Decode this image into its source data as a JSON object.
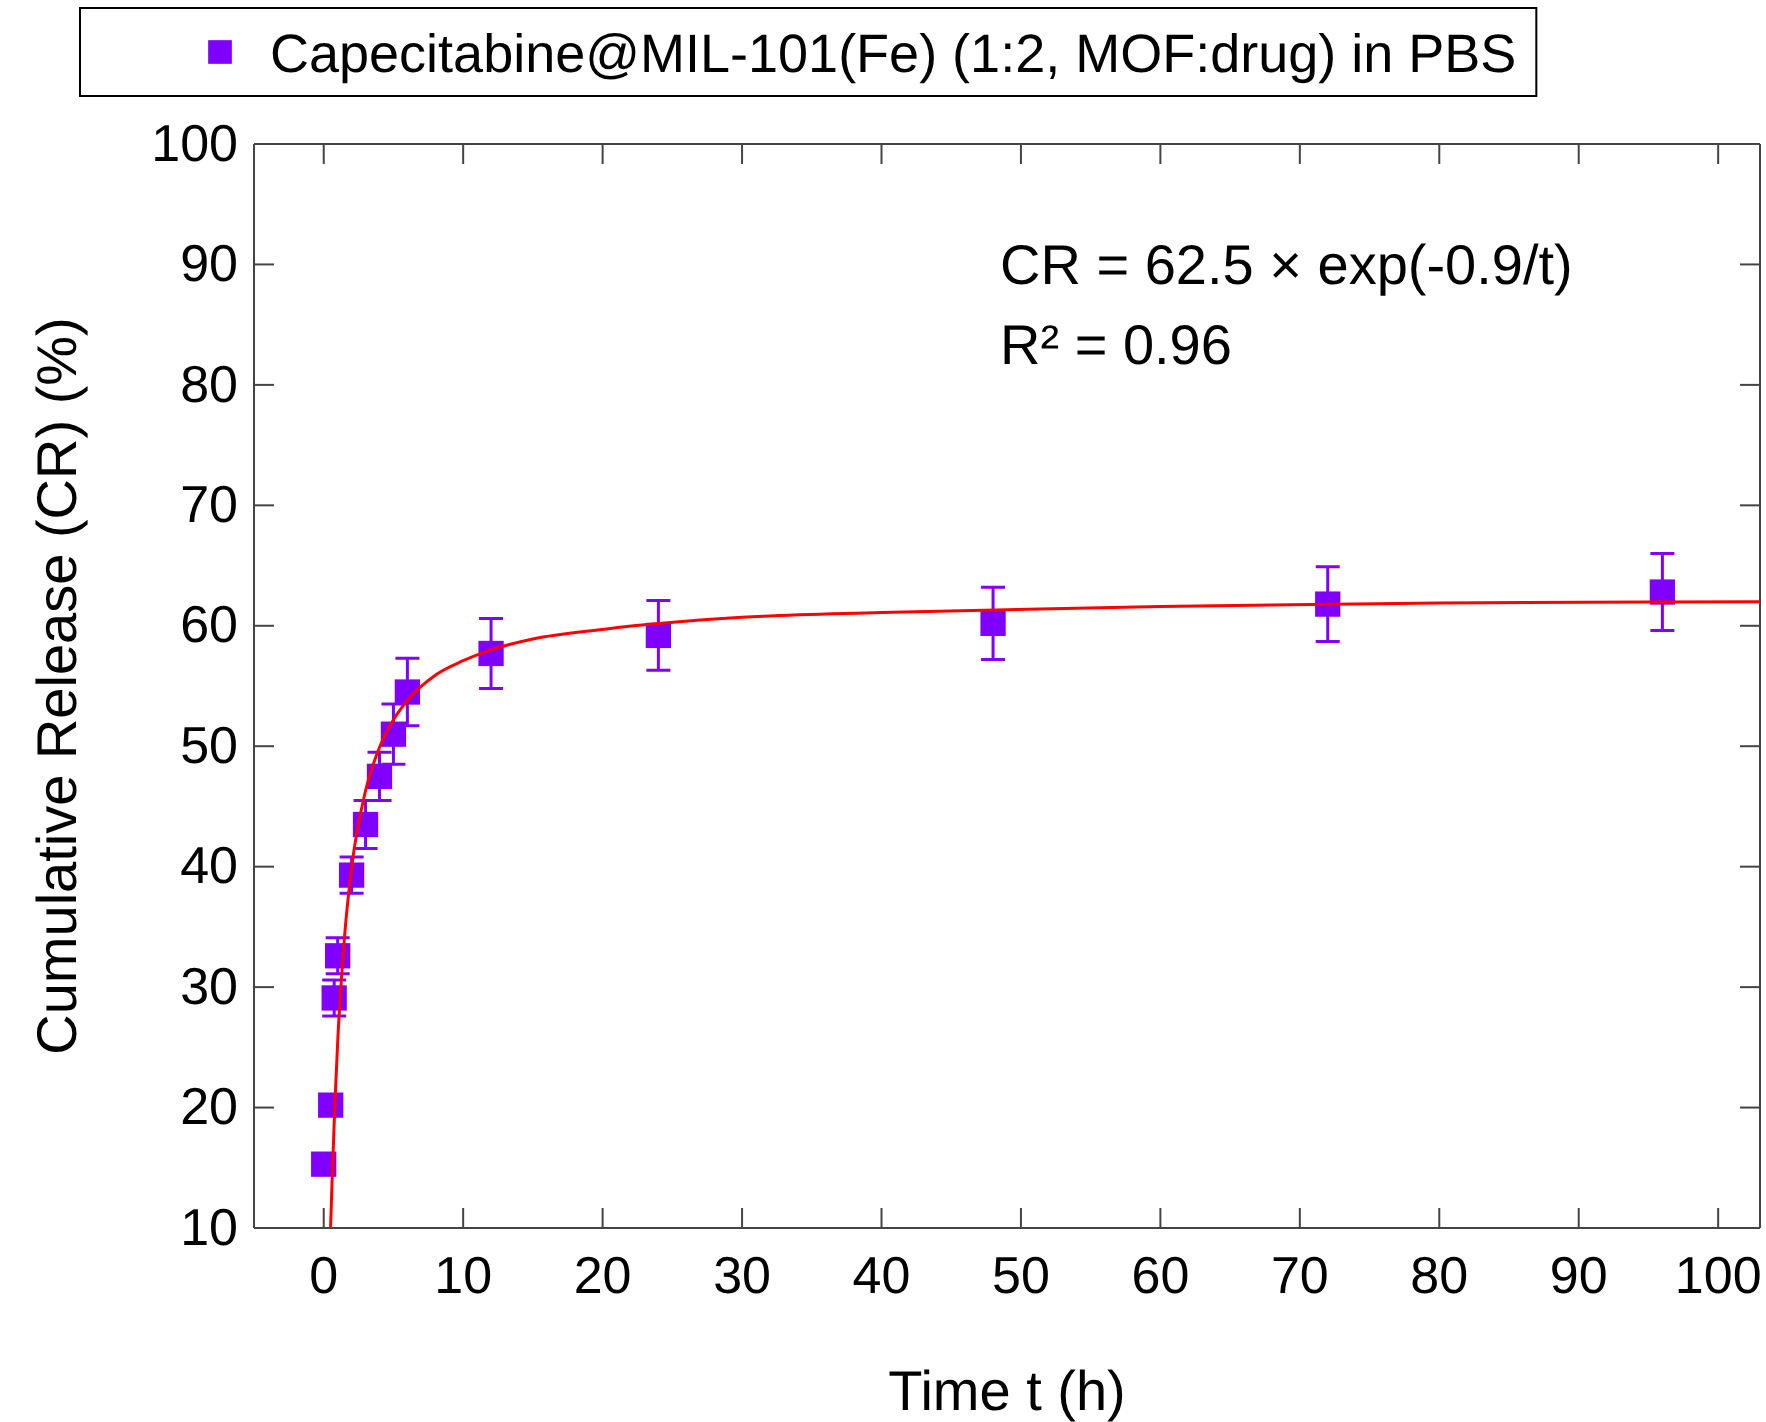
{
  "chart_data": {
    "type": "scatter",
    "xlabel": "Time t (h)",
    "ylabel": "Cumulative Release (CR) (%)",
    "xlim": [
      -5,
      103
    ],
    "xticks": [
      0,
      10,
      20,
      30,
      40,
      50,
      60,
      70,
      80,
      90,
      100
    ],
    "ylim": [
      10,
      100
    ],
    "yticks": [
      10,
      20,
      30,
      40,
      50,
      60,
      70,
      80,
      90,
      100
    ],
    "grid": false,
    "legend": "top",
    "annotations": [
      "CR = 62.5 × exp(-0.9/t)",
      "R² = 0.96"
    ],
    "series": [
      {
        "name": "Capecitabine@MIL-101(Fe) (1:2, MOF:drug) in PBS",
        "color": "#8000ff",
        "marker": "square",
        "x": [
          0,
          0.5,
          0.75,
          1,
          2,
          3,
          4,
          5,
          6,
          12,
          24,
          48,
          72,
          96
        ],
        "values": [
          15.3,
          20.2,
          29.1,
          32.6,
          39.3,
          43.5,
          47.5,
          51,
          54.5,
          57.7,
          59.2,
          60.2,
          61.8,
          62.8
        ],
        "errors": [
          null,
          null,
          1.5,
          1.5,
          1.5,
          2,
          2,
          2.5,
          2.8,
          2.9,
          2.9,
          3,
          3.1,
          3.2
        ]
      },
      {
        "type": "line",
        "color": "#ff0000",
        "marker": "none",
        "line_style": "solid",
        "x": [
          0.49,
          0.6,
          0.8,
          1,
          1.5,
          2,
          3,
          4,
          5,
          6,
          8,
          10,
          12,
          15,
          20,
          30,
          40,
          60,
          80,
          103
        ],
        "values": [
          10,
          13.9,
          20.3,
          25.4,
          34.3,
          39.9,
          46.3,
          49.9,
          52.2,
          53.8,
          55.9,
          57.1,
          58,
          58.9,
          59.7,
          60.7,
          61.1,
          61.6,
          61.9,
          62
        ]
      }
    ]
  }
}
